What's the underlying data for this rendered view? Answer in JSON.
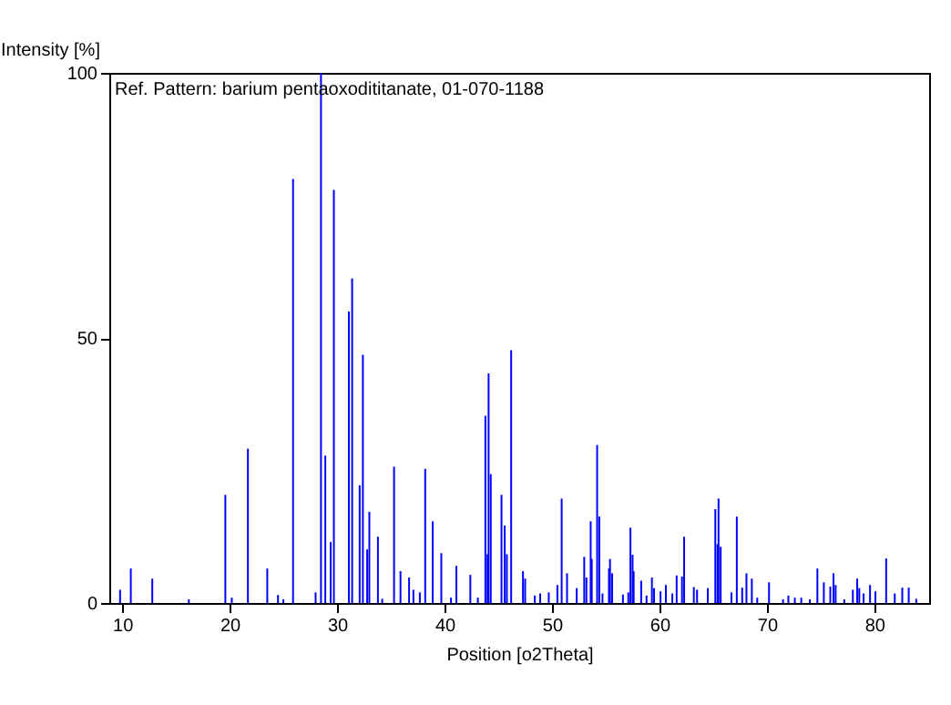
{
  "chart_data": {
    "type": "bar",
    "xlabel": "Position [o2Theta]",
    "ylabel": "Intensity [%]",
    "annotations": [
      "Ref. Pattern: barium pentaoxodititanate, 01-070-1188"
    ],
    "x": [
      9.8,
      10.8,
      12.8,
      16.2,
      19.6,
      20.2,
      21.7,
      23.5,
      24.5,
      25.0,
      25.9,
      28.0,
      28.5,
      28.9,
      29.4,
      29.7,
      31.1,
      31.4,
      32.1,
      32.4,
      32.8,
      33.0,
      33.8,
      34.2,
      35.3,
      35.9,
      36.7,
      37.1,
      37.7,
      38.2,
      38.9,
      39.7,
      40.6,
      41.1,
      42.4,
      43.1,
      43.8,
      44.0,
      44.1,
      44.3,
      45.3,
      45.6,
      45.8,
      46.2,
      47.3,
      47.5,
      48.4,
      48.9,
      49.7,
      50.5,
      50.9,
      51.4,
      52.3,
      53.0,
      53.2,
      53.6,
      53.7,
      54.2,
      54.4,
      54.7,
      55.3,
      55.4,
      55.6,
      56.6,
      57.1,
      57.3,
      57.5,
      57.6,
      58.3,
      58.8,
      59.3,
      59.5,
      60.1,
      60.6,
      61.2,
      61.6,
      62.1,
      62.3,
      63.2,
      63.5,
      64.5,
      65.2,
      65.4,
      65.5,
      65.7,
      66.7,
      67.2,
      67.7,
      68.1,
      68.6,
      69.1,
      70.2,
      71.5,
      72.0,
      72.6,
      73.2,
      74.0,
      74.7,
      75.3,
      75.9,
      76.2,
      76.4,
      77.2,
      78.0,
      78.4,
      78.6,
      79.0,
      79.6,
      80.1,
      81.1,
      81.9,
      82.6,
      83.2,
      83.9
    ],
    "values": [
      2.5,
      6.5,
      4.6,
      0.7,
      20.4,
      1,
      29.1,
      6.5,
      1.5,
      0.7,
      80,
      2,
      100,
      27.8,
      11.5,
      77.9,
      55,
      61.2,
      22.2,
      46.8,
      10.1,
      17.2,
      12.5,
      0.8,
      25.7,
      6,
      4.8,
      2.5,
      2,
      25.3,
      15.4,
      9.4,
      1,
      7,
      5.3,
      1,
      35.3,
      9.2,
      43.3,
      24.3,
      20.4,
      14.6,
      9.2,
      47.7,
      6,
      4.6,
      1.4,
      1.8,
      2,
      3.4,
      19.7,
      5.6,
      2.8,
      8.7,
      4.8,
      15.4,
      8.3,
      29.8,
      16.3,
      1.8,
      6.5,
      8.3,
      5.6,
      1.6,
      2,
      14.2,
      9.1,
      6,
      4.2,
      1.4,
      4.8,
      2.8,
      2.2,
      3.4,
      1.8,
      5.2,
      5,
      12.5,
      3,
      2.5,
      2.8,
      17.7,
      11.1,
      19.7,
      10.6,
      2,
      16.3,
      2.9,
      5.6,
      4.6,
      1,
      3.9,
      0.7,
      1.4,
      1,
      1,
      0.7,
      6.5,
      3.9,
      3.1,
      5.6,
      3.4,
      0.7,
      2.5,
      4.6,
      2.8,
      1.8,
      3.4,
      2.2,
      8.4,
      1.8,
      2.9,
      2.9,
      0.8
    ],
    "color": "#0000ff",
    "xlim": [
      8.8,
      85.1
    ],
    "xticks": [
      10,
      20,
      30,
      40,
      50,
      60,
      70,
      80
    ],
    "ylim": [
      0,
      100
    ],
    "yticks": [
      0,
      50,
      100
    ],
    "grid": false
  }
}
